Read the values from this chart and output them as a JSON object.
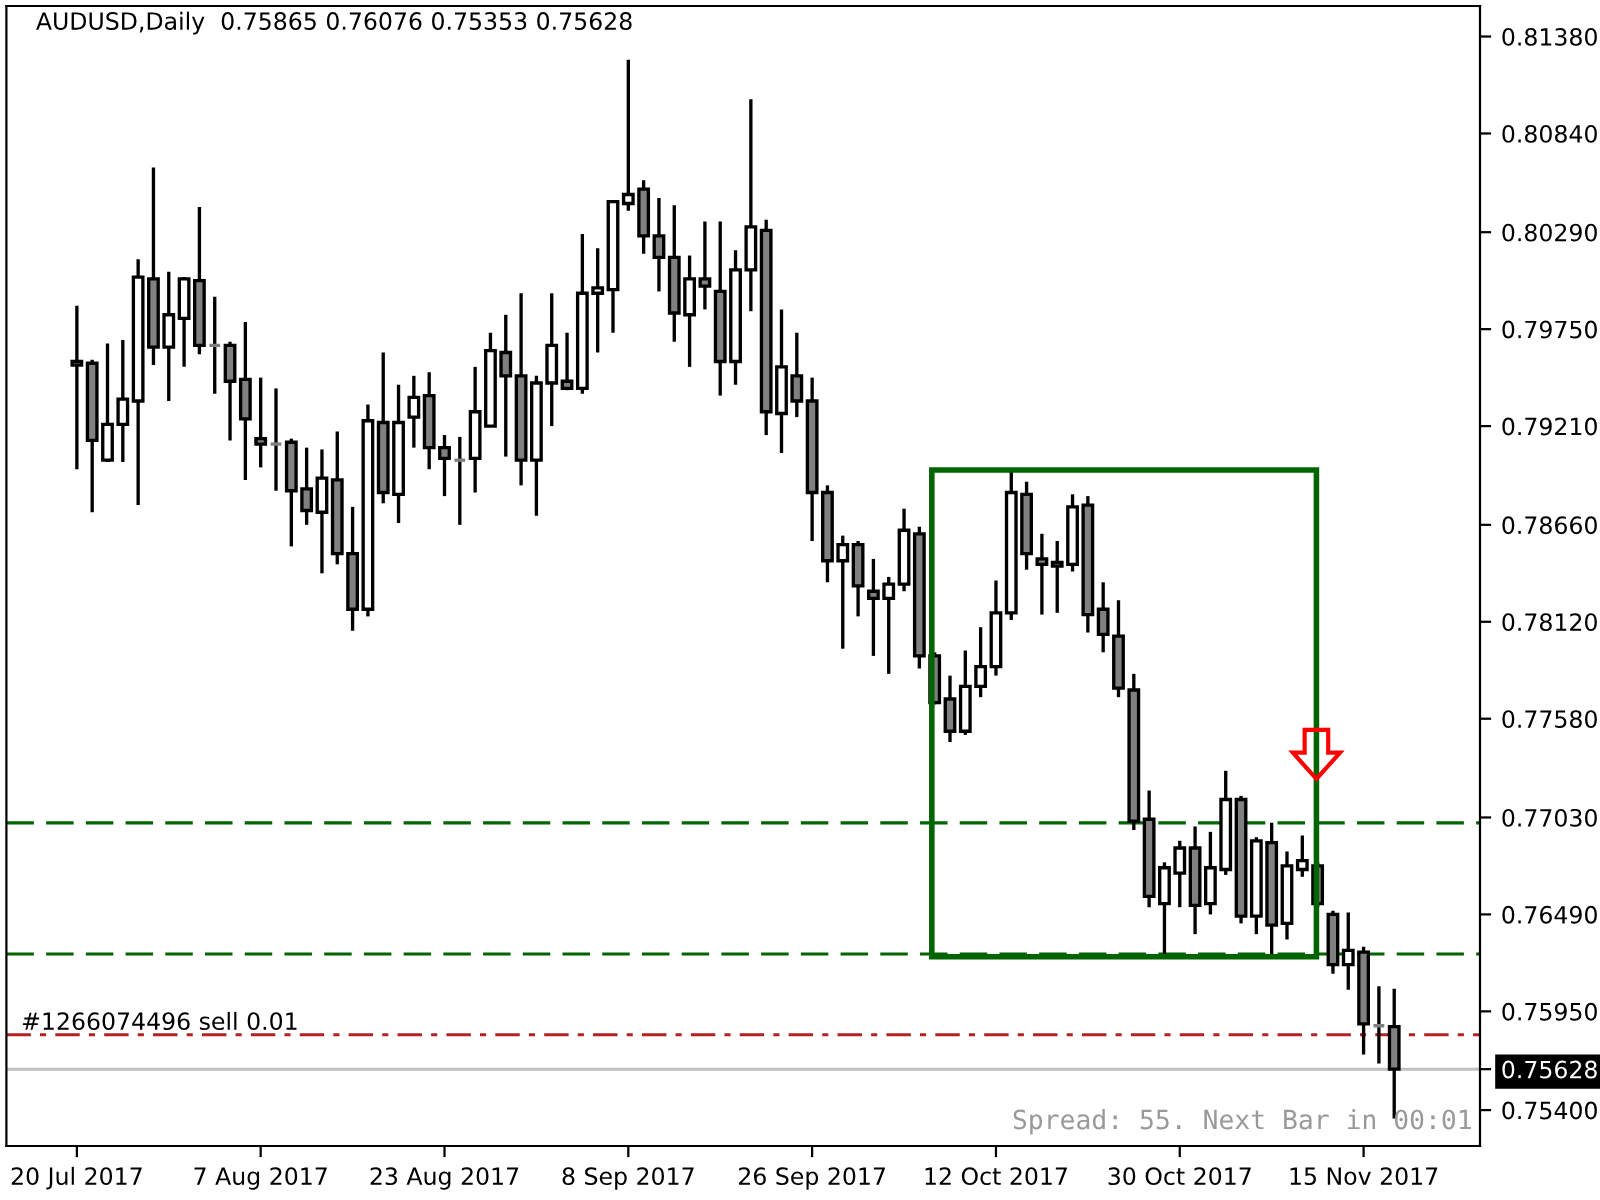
{
  "chart_data": {
    "type": "candlestick",
    "title": "AUDUSD,Daily  0.75865 0.76076 0.75353 0.75628",
    "categories": [
      "20 Jul 2017",
      null,
      null,
      null,
      null,
      null,
      null,
      null,
      null,
      null,
      null,
      null,
      "7 Aug 2017",
      null,
      null,
      null,
      null,
      null,
      null,
      null,
      null,
      null,
      null,
      null,
      "23 Aug 2017",
      null,
      null,
      null,
      null,
      null,
      null,
      null,
      null,
      null,
      null,
      null,
      "8 Sep 2017",
      null,
      null,
      null,
      null,
      null,
      null,
      null,
      null,
      null,
      null,
      null,
      "26 Sep 2017",
      null,
      null,
      null,
      null,
      null,
      null,
      null,
      null,
      null,
      null,
      null,
      "12 Oct 2017",
      null,
      null,
      null,
      null,
      null,
      null,
      null,
      null,
      null,
      null,
      null,
      "30 Oct 2017",
      null,
      null,
      null,
      null,
      null,
      null,
      null,
      null,
      null,
      null,
      null,
      "15 Nov 2017",
      null,
      null
    ],
    "ohlc": [
      [
        0.7955,
        0.7988,
        0.7897,
        0.7957
      ],
      [
        0.7956,
        0.7958,
        0.7873,
        0.7913
      ],
      [
        0.7902,
        0.7967,
        0.7901,
        0.7922
      ],
      [
        0.7922,
        0.7969,
        0.7901,
        0.7936
      ],
      [
        0.7935,
        0.8014,
        0.7877,
        0.8004
      ],
      [
        0.8003,
        0.8065,
        0.7955,
        0.7965
      ],
      [
        0.7965,
        0.8007,
        0.7935,
        0.7983
      ],
      [
        0.7981,
        0.8004,
        0.7954,
        0.8003
      ],
      [
        0.8002,
        0.8043,
        0.7961,
        0.7966
      ],
      [
        0.7966,
        0.7993,
        0.7939,
        0.7966
      ],
      [
        0.7966,
        0.7968,
        0.7913,
        0.7946
      ],
      [
        0.7947,
        0.7979,
        0.7891,
        0.7925
      ],
      [
        0.7914,
        0.7948,
        0.7898,
        0.7911
      ],
      [
        0.7911,
        0.7942,
        0.7885,
        0.7911
      ],
      [
        0.7912,
        0.7914,
        0.7854,
        0.7885
      ],
      [
        0.7886,
        0.7909,
        0.7866,
        0.7874
      ],
      [
        0.7873,
        0.7908,
        0.7839,
        0.7892
      ],
      [
        0.7891,
        0.7918,
        0.7844,
        0.785
      ],
      [
        0.785,
        0.7876,
        0.7807,
        0.7819
      ],
      [
        0.7819,
        0.7933,
        0.7815,
        0.7924
      ],
      [
        0.7923,
        0.7962,
        0.7878,
        0.7884
      ],
      [
        0.7883,
        0.7944,
        0.7867,
        0.7923
      ],
      [
        0.7926,
        0.7949,
        0.7909,
        0.7937
      ],
      [
        0.7938,
        0.7951,
        0.7897,
        0.7909
      ],
      [
        0.7909,
        0.7916,
        0.7882,
        0.7903
      ],
      [
        0.7902,
        0.7915,
        0.7866,
        0.7902
      ],
      [
        0.7903,
        0.7954,
        0.7884,
        0.7929
      ],
      [
        0.7921,
        0.7973,
        0.7921,
        0.7963
      ],
      [
        0.7962,
        0.7983,
        0.7904,
        0.7949
      ],
      [
        0.7949,
        0.7995,
        0.7888,
        0.7902
      ],
      [
        0.7902,
        0.7949,
        0.7871,
        0.7945
      ],
      [
        0.7945,
        0.7995,
        0.7921,
        0.7966
      ],
      [
        0.7946,
        0.7973,
        0.7941,
        0.7942
      ],
      [
        0.7942,
        0.8028,
        0.7939,
        0.7995
      ],
      [
        0.7995,
        0.802,
        0.7962,
        0.7998
      ],
      [
        0.7997,
        0.8047,
        0.7973,
        0.8046
      ],
      [
        0.8045,
        0.8125,
        0.8041,
        0.805
      ],
      [
        0.8053,
        0.8058,
        0.8017,
        0.8027
      ],
      [
        0.8027,
        0.8048,
        0.7996,
        0.8015
      ],
      [
        0.8015,
        0.8044,
        0.7968,
        0.7984
      ],
      [
        0.7983,
        0.8016,
        0.7954,
        0.8003
      ],
      [
        0.8003,
        0.8035,
        0.7986,
        0.7999
      ],
      [
        0.7996,
        0.8035,
        0.7938,
        0.7957
      ],
      [
        0.7957,
        0.8019,
        0.7944,
        0.8008
      ],
      [
        0.8008,
        0.8103,
        0.7985,
        0.8032
      ],
      [
        0.803,
        0.8036,
        0.7916,
        0.7929
      ],
      [
        0.7928,
        0.7986,
        0.7906,
        0.7954
      ],
      [
        0.7949,
        0.7973,
        0.7926,
        0.7935
      ],
      [
        0.7935,
        0.7948,
        0.7857,
        0.7884
      ],
      [
        0.7884,
        0.7888,
        0.7834,
        0.7846
      ],
      [
        0.7846,
        0.786,
        0.7797,
        0.7855
      ],
      [
        0.7855,
        0.7857,
        0.7815,
        0.7832
      ],
      [
        0.7829,
        0.7847,
        0.7793,
        0.7825
      ],
      [
        0.7825,
        0.7837,
        0.7783,
        0.7833
      ],
      [
        0.7833,
        0.7875,
        0.7829,
        0.7863
      ],
      [
        0.7861,
        0.7865,
        0.7786,
        0.7793
      ],
      [
        0.7793,
        0.7795,
        0.7766,
        0.7767
      ],
      [
        0.7769,
        0.7782,
        0.7745,
        0.7751
      ],
      [
        0.7751,
        0.7796,
        0.7749,
        0.7776
      ],
      [
        0.7776,
        0.7809,
        0.777,
        0.7787
      ],
      [
        0.7787,
        0.7835,
        0.7782,
        0.7817
      ],
      [
        0.7817,
        0.7896,
        0.7813,
        0.7884
      ],
      [
        0.7883,
        0.789,
        0.7841,
        0.785
      ],
      [
        0.7847,
        0.7861,
        0.7816,
        0.7844
      ],
      [
        0.7843,
        0.7857,
        0.7817,
        0.7845
      ],
      [
        0.7844,
        0.7883,
        0.784,
        0.7876
      ],
      [
        0.7877,
        0.7882,
        0.7806,
        0.7816
      ],
      [
        0.7819,
        0.7834,
        0.7795,
        0.7805
      ],
      [
        0.7804,
        0.7824,
        0.777,
        0.7775
      ],
      [
        0.7774,
        0.7783,
        0.7696,
        0.7701
      ],
      [
        0.7702,
        0.7718,
        0.7653,
        0.7659
      ],
      [
        0.7655,
        0.7678,
        0.7625,
        0.7675
      ],
      [
        0.7672,
        0.769,
        0.7653,
        0.7686
      ],
      [
        0.7686,
        0.7698,
        0.7638,
        0.7654
      ],
      [
        0.7655,
        0.7695,
        0.7649,
        0.7675
      ],
      [
        0.7674,
        0.7729,
        0.7671,
        0.7713
      ],
      [
        0.7713,
        0.7715,
        0.7644,
        0.7648
      ],
      [
        0.7648,
        0.7692,
        0.7638,
        0.769
      ],
      [
        0.7689,
        0.77,
        0.7627,
        0.7643
      ],
      [
        0.7644,
        0.7684,
        0.7635,
        0.7676
      ],
      [
        0.7674,
        0.7693,
        0.767,
        0.7679
      ],
      [
        0.7676,
        0.7678,
        0.7653,
        0.7655
      ],
      [
        0.7649,
        0.7651,
        0.7616,
        0.7621
      ],
      [
        0.7621,
        0.765,
        0.7607,
        0.7629
      ],
      [
        0.7628,
        0.7631,
        0.7571,
        0.7588
      ],
      [
        0.7587,
        0.7609,
        0.7566,
        0.7587
      ],
      [
        0.75865,
        0.76076,
        0.75353,
        0.75628
      ]
    ],
    "colors": [
      "#ffffff",
      "#808080",
      "#ffffff",
      "#ffffff",
      "#ffffff",
      "#808080",
      "#ffffff",
      "#ffffff",
      "#808080",
      "#808080",
      "#808080",
      "#808080",
      "#808080",
      "#808080",
      "#808080",
      "#808080",
      "#ffffff",
      "#808080",
      "#808080",
      "#ffffff",
      "#808080",
      "#ffffff",
      "#ffffff",
      "#808080",
      "#808080",
      "#808080",
      "#ffffff",
      "#ffffff",
      "#808080",
      "#808080",
      "#ffffff",
      "#ffffff",
      "#808080",
      "#ffffff",
      "#ffffff",
      "#ffffff",
      "#ffffff",
      "#808080",
      "#808080",
      "#808080",
      "#ffffff",
      "#808080",
      "#808080",
      "#ffffff",
      "#ffffff",
      "#808080",
      "#ffffff",
      "#808080",
      "#808080",
      "#808080",
      "#ffffff",
      "#808080",
      "#808080",
      "#ffffff",
      "#ffffff",
      "#808080",
      "#808080",
      "#808080",
      "#ffffff",
      "#ffffff",
      "#ffffff",
      "#ffffff",
      "#808080",
      "#808080",
      "#ffffff",
      "#ffffff",
      "#808080",
      "#808080",
      "#808080",
      "#808080",
      "#808080",
      "#ffffff",
      "#ffffff",
      "#808080",
      "#ffffff",
      "#ffffff",
      "#808080",
      "#ffffff",
      "#808080",
      "#ffffff",
      "#ffffff",
      "#808080",
      "#808080",
      "#ffffff",
      "#808080",
      "#808080",
      "#808080"
    ],
    "ylim": [
      0.752,
      0.8155
    ],
    "yticks": [
      {
        "value": 0.8138,
        "label": "0.81380"
      },
      {
        "value": 0.8084,
        "label": "0.80840"
      },
      {
        "value": 0.8029,
        "label": "0.80290"
      },
      {
        "value": 0.7975,
        "label": "0.79750"
      },
      {
        "value": 0.7921,
        "label": "0.79210"
      },
      {
        "value": 0.7866,
        "label": "0.78660"
      },
      {
        "value": 0.7812,
        "label": "0.78120"
      },
      {
        "value": 0.7758,
        "label": "0.77580"
      },
      {
        "value": 0.7703,
        "label": "0.77030"
      },
      {
        "value": 0.7649,
        "label": "0.76490"
      },
      {
        "value": 0.7595,
        "label": "0.75950"
      },
      {
        "value": 0.75628,
        "label": "0.75628"
      },
      {
        "value": 0.754,
        "label": "0.75400"
      }
    ],
    "ref_lines": [
      {
        "axis": "y",
        "value": 0.77,
        "color": "#006400",
        "line_style": "dashed"
      },
      {
        "axis": "y",
        "value": 0.7627,
        "color": "#006400",
        "line_style": "dashed"
      },
      {
        "axis": "y",
        "value": 0.7582,
        "label": "#1266074496 sell 0.01",
        "color": "#b22222",
        "line_style": "dashdot"
      },
      {
        "axis": "y",
        "value": 0.75628,
        "color": "#c0c0c0",
        "line_style": "solid"
      }
    ],
    "annotations": [
      "Spread: 55. Next Bar in 00:01"
    ],
    "grid": false,
    "legend": false
  }
}
